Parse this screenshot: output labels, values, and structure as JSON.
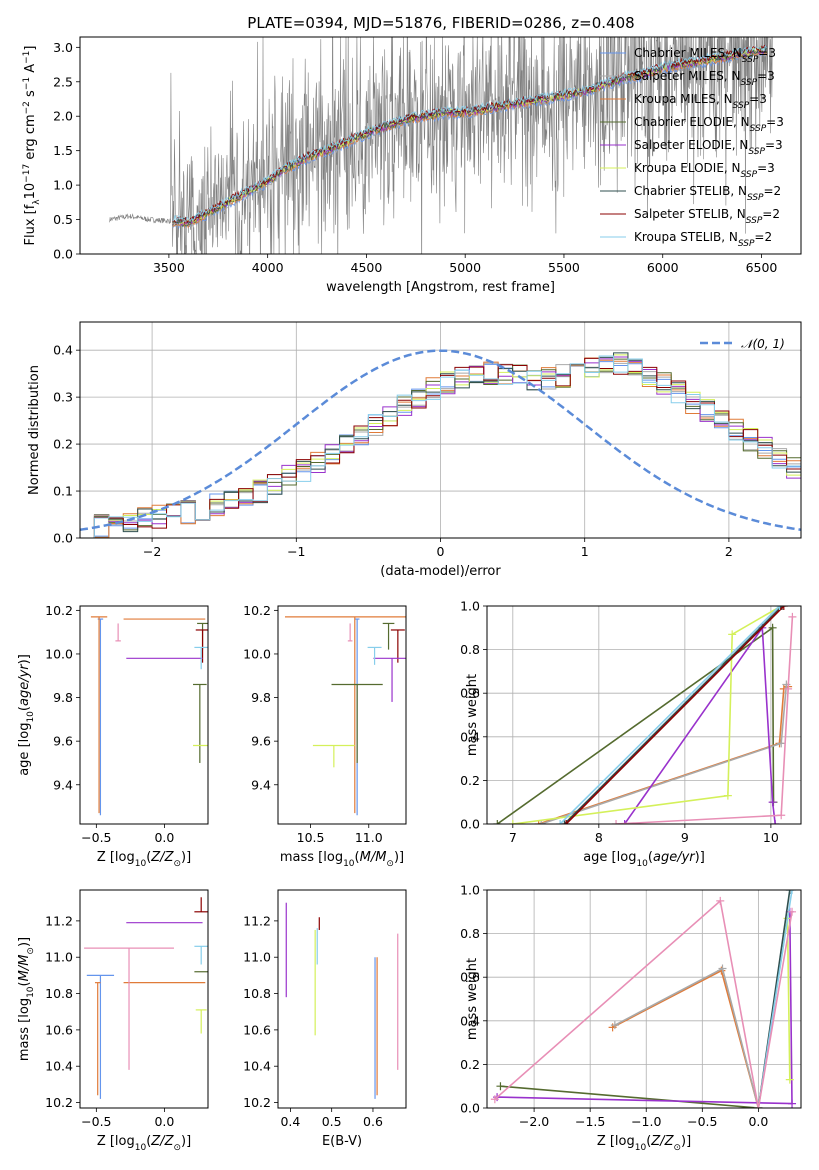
{
  "figure": {
    "title": "PLATE=0394, MJD=51876, FIBERID=0286, z=0.408"
  },
  "series_styles": [
    {
      "name": "Chabrier MILES",
      "nssp": "3",
      "color": "#6495ed"
    },
    {
      "name": "Salpeter MILES",
      "nssp": "3",
      "color": "#a9a9a9"
    },
    {
      "name": "Kroupa MILES",
      "nssp": "3",
      "color": "#e07b39"
    },
    {
      "name": "Chabrier ELODIE",
      "nssp": "3",
      "color": "#556b2f"
    },
    {
      "name": "Salpeter ELODIE",
      "nssp": "3",
      "color": "#9932cc"
    },
    {
      "name": "Kroupa ELODIE",
      "nssp": "3",
      "color": "#d4f05a"
    },
    {
      "name": "Chabrier STELIB",
      "nssp": "2",
      "color": "#2f4f4f"
    },
    {
      "name": "Salpeter STELIB",
      "nssp": "2",
      "color": "#8b0000"
    },
    {
      "name": "Kroupa STELIB",
      "nssp": "2",
      "color": "#87ceeb"
    }
  ],
  "chart_data": [
    {
      "id": "spectrum",
      "type": "line",
      "xlabel": "wavelength [Angstrom, rest frame]",
      "ylabel": "Flux [f_λ 10^-17 erg cm^-2 s^-1 A^-1]",
      "xlim": [
        3050,
        6700
      ],
      "ylim": [
        0,
        3.15
      ],
      "xticks": [
        3500,
        4000,
        4500,
        5000,
        5500,
        6000,
        6500
      ],
      "yticks": [
        0.0,
        0.5,
        1.0,
        1.5,
        2.0,
        2.5,
        3.0
      ],
      "legend": "upper right",
      "data_color": "#808080",
      "data_x_range": [
        3200,
        6560
      ],
      "model_x_range": [
        3520,
        6530
      ],
      "continuum": {
        "x": [
          3200,
          3300,
          3400,
          3500,
          3600,
          3700,
          3800,
          3900,
          4000,
          4100,
          4200,
          4300,
          4400,
          4500,
          4600,
          4700,
          4800,
          4900,
          5000,
          5100,
          5200,
          5300,
          5400,
          5500,
          5600,
          5700,
          5800,
          5900,
          6000,
          6100,
          6200,
          6300,
          6400,
          6500
        ],
        "y": [
          0.5,
          0.55,
          0.5,
          0.48,
          0.45,
          0.6,
          0.75,
          0.9,
          1.05,
          1.25,
          1.4,
          1.5,
          1.62,
          1.75,
          1.85,
          1.95,
          2.0,
          2.05,
          2.05,
          2.1,
          2.15,
          2.2,
          2.25,
          2.3,
          2.35,
          2.45,
          2.55,
          2.6,
          2.7,
          2.75,
          2.8,
          2.85,
          2.9,
          2.95
        ]
      }
    },
    {
      "id": "residuals",
      "type": "histogram",
      "xlabel": "(data-model)/error",
      "ylabel": "Normed distribution",
      "xlim": [
        -2.5,
        2.5
      ],
      "ylim": [
        0,
        0.46
      ],
      "xticks": [
        -2,
        -1,
        0,
        1,
        2
      ],
      "yticks": [
        0.0,
        0.1,
        0.2,
        0.3,
        0.4
      ],
      "grid": true,
      "legend": "upper right",
      "gaussian_label": "𝒩(0, 1)",
      "gaussian_color": "#5b8bd8",
      "bin_width": 0.1,
      "bin_start": -2.5,
      "envelope": [
        0.02,
        0.025,
        0.03,
        0.035,
        0.04,
        0.045,
        0.05,
        0.055,
        0.06,
        0.07,
        0.08,
        0.09,
        0.1,
        0.115,
        0.13,
        0.145,
        0.16,
        0.18,
        0.2,
        0.22,
        0.24,
        0.26,
        0.28,
        0.3,
        0.32,
        0.33,
        0.34,
        0.345,
        0.35,
        0.35,
        0.345,
        0.34,
        0.34,
        0.345,
        0.35,
        0.36,
        0.37,
        0.37,
        0.36,
        0.345,
        0.33,
        0.31,
        0.29,
        0.27,
        0.25,
        0.23,
        0.21,
        0.19,
        0.17,
        0.15
      ]
    },
    {
      "id": "age-vs-Z",
      "type": "errorbar",
      "xlabel": "Z [log10(Z/Z⊙)]",
      "ylabel": "age [log10(age/yr)]",
      "xlim": [
        -0.62,
        0.32
      ],
      "ylim": [
        9.22,
        10.22
      ],
      "xticks": [
        -0.5,
        0.0
      ],
      "xtick_labels": [
        "−0.5",
        "0.0"
      ],
      "yticks": [
        9.4,
        9.6,
        9.8,
        10.0,
        10.2
      ],
      "points": [
        {
          "x": -0.47,
          "y": 10.16,
          "xerr": 0.02,
          "yerr": [
            0.9,
            0.0
          ],
          "color": "#6495ed"
        },
        {
          "x": -0.48,
          "y": 10.17,
          "xerr": 0.06,
          "yerr": [
            0.9,
            0.0
          ],
          "color": "#e07b39"
        },
        {
          "x": 0.0,
          "y": 10.16,
          "xerr": 0.3,
          "yerr": [
            0.0,
            0.0
          ],
          "color": "#e07b39"
        },
        {
          "x": 0.28,
          "y": 10.14,
          "xerr": 0.04,
          "yerr": [
            0.12,
            0.0
          ],
          "color": "#556b2f"
        },
        {
          "x": 0.26,
          "y": 9.86,
          "xerr": 0.05,
          "yerr": [
            0.36,
            0.0
          ],
          "color": "#556b2f"
        },
        {
          "x": 0.28,
          "y": 10.11,
          "xerr": 0.05,
          "yerr": [
            0.15,
            0.0
          ],
          "color": "#8b0000"
        },
        {
          "x": 0.0,
          "y": 9.98,
          "xerr": 0.28,
          "yerr": [
            0.0,
            0.0
          ],
          "color": "#9932cc"
        },
        {
          "x": 0.27,
          "y": 9.58,
          "xerr": 0.06,
          "yerr": [
            0.0,
            0.0
          ],
          "color": "#d4f05a"
        },
        {
          "x": 0.27,
          "y": 10.03,
          "xerr": 0.05,
          "yerr": [
            0.1,
            0.0
          ],
          "color": "#87ceeb"
        },
        {
          "x": -0.34,
          "y": 10.06,
          "xerr": 0.02,
          "yerr": [
            0.0,
            0.08
          ],
          "color": "#e88fb6"
        }
      ]
    },
    {
      "id": "age-vs-mass",
      "type": "errorbar",
      "xlabel": "mass [log10(M/M⊙)]",
      "ylabel": "",
      "xlim": [
        10.22,
        11.32
      ],
      "ylim": [
        9.22,
        10.22
      ],
      "xticks": [
        10.5,
        11.0
      ],
      "yticks": [
        9.4,
        9.6,
        9.8,
        10.0,
        10.2
      ],
      "points": [
        {
          "x": 10.9,
          "y": 10.16,
          "xerr": 0.02,
          "yerr": [
            0.9,
            0.0
          ],
          "color": "#6495ed"
        },
        {
          "x": 10.88,
          "y": 10.17,
          "xerr": 0.6,
          "yerr": [
            0.9,
            0.0
          ],
          "color": "#e07b39"
        },
        {
          "x": 11.17,
          "y": 10.14,
          "xerr": 0.05,
          "yerr": [
            0.12,
            0.0
          ],
          "color": "#556b2f"
        },
        {
          "x": 10.9,
          "y": 9.86,
          "xerr": 0.22,
          "yerr": [
            0.36,
            0.0
          ],
          "color": "#556b2f"
        },
        {
          "x": 11.25,
          "y": 10.11,
          "xerr": 0.06,
          "yerr": [
            0.15,
            0.0
          ],
          "color": "#8b0000"
        },
        {
          "x": 11.2,
          "y": 9.98,
          "xerr": 0.16,
          "yerr": [
            0.2,
            0.0
          ],
          "color": "#9932cc"
        },
        {
          "x": 10.7,
          "y": 9.58,
          "xerr": 0.18,
          "yerr": [
            0.1,
            0.0
          ],
          "color": "#d4f05a"
        },
        {
          "x": 11.05,
          "y": 10.03,
          "xerr": 0.06,
          "yerr": [
            0.08,
            0.0
          ],
          "color": "#87ceeb"
        },
        {
          "x": 10.84,
          "y": 10.06,
          "xerr": 0.02,
          "yerr": [
            0.0,
            0.08
          ],
          "color": "#e88fb6"
        }
      ]
    },
    {
      "id": "cumulative-weight-vs-age",
      "type": "line",
      "xlabel": "age [log10(age/yr)]",
      "ylabel": "mass weight",
      "xlim": [
        6.7,
        10.35
      ],
      "ylim": [
        0,
        1.0
      ],
      "xticks": [
        7,
        8,
        9,
        10
      ],
      "yticks": [
        0.0,
        0.2,
        0.4,
        0.6,
        0.8,
        1.0
      ],
      "grid": true,
      "series": [
        {
          "color": "#556b2f",
          "x": [
            6.82,
            10.02,
            10.03
          ],
          "y": [
            0.0,
            0.9,
            0.1
          ]
        },
        {
          "color": "#e07b39",
          "x": [
            7.3,
            10.1,
            10.15,
            10.2
          ],
          "y": [
            0.0,
            0.37,
            0.62,
            0.63
          ]
        },
        {
          "color": "#a9a9a9",
          "x": [
            7.33,
            10.12,
            10.18
          ],
          "y": [
            0.0,
            0.37,
            0.64
          ]
        },
        {
          "color": "#9932cc",
          "x": [
            8.3,
            9.9,
            10.02,
            10.05
          ],
          "y": [
            0.0,
            0.9,
            0.1,
            0.0
          ]
        },
        {
          "color": "#d4f05a",
          "x": [
            7.0,
            9.5,
            9.55,
            10.12
          ],
          "y": [
            0.0,
            0.13,
            0.87,
            1.0
          ]
        },
        {
          "color": "#2f4f4f",
          "x": [
            7.6,
            10.13
          ],
          "y": [
            0.0,
            1.0
          ]
        },
        {
          "color": "#8b0000",
          "x": [
            7.62,
            10.15
          ],
          "y": [
            0.0,
            1.0
          ]
        },
        {
          "color": "#87ceeb",
          "x": [
            7.55,
            10.1
          ],
          "y": [
            0.0,
            1.0
          ]
        },
        {
          "color": "#e88fb6",
          "x": [
            8.2,
            10.12,
            10.2,
            10.25
          ],
          "y": [
            0.0,
            0.04,
            0.62,
            0.95
          ]
        }
      ]
    },
    {
      "id": "mass-vs-Z",
      "type": "errorbar",
      "xlabel": "Z [log10(Z/Z⊙)]",
      "ylabel": "mass [log10(M/M⊙)]",
      "xlim": [
        -0.62,
        0.32
      ],
      "ylim": [
        10.17,
        11.37
      ],
      "xticks": [
        -0.5,
        0.0
      ],
      "xtick_labels": [
        "−0.5",
        "0.0"
      ],
      "yticks": [
        10.2,
        10.4,
        10.6,
        10.8,
        11.0,
        11.2
      ],
      "points": [
        {
          "x": -0.47,
          "y": 10.9,
          "xerr": 0.1,
          "yerr": [
            0.68,
            0.0
          ],
          "color": "#6495ed"
        },
        {
          "x": -0.49,
          "y": 10.86,
          "xerr": 0.02,
          "yerr": [
            0.62,
            0.0
          ],
          "color": "#e07b39"
        },
        {
          "x": 0.0,
          "y": 10.86,
          "xerr": 0.3,
          "yerr": [
            0.0,
            0.0
          ],
          "color": "#e07b39"
        },
        {
          "x": 0.27,
          "y": 10.92,
          "xerr": 0.05,
          "yerr": [
            0.0,
            0.0
          ],
          "color": "#556b2f"
        },
        {
          "x": 0.27,
          "y": 11.25,
          "xerr": 0.05,
          "yerr": [
            0.0,
            0.08
          ],
          "color": "#8b0000"
        },
        {
          "x": 0.0,
          "y": 11.19,
          "xerr": 0.28,
          "yerr": [
            0.0,
            0.0
          ],
          "color": "#9932cc"
        },
        {
          "x": 0.27,
          "y": 10.71,
          "xerr": 0.04,
          "yerr": [
            0.13,
            0.0
          ],
          "color": "#d4f05a"
        },
        {
          "x": 0.27,
          "y": 11.06,
          "xerr": 0.05,
          "yerr": [
            0.1,
            0.0
          ],
          "color": "#87ceeb"
        },
        {
          "x": -0.26,
          "y": 11.05,
          "xerr": 0.33,
          "yerr": [
            0.67,
            0.0
          ],
          "color": "#e88fb6"
        }
      ]
    },
    {
      "id": "mass-vs-EBV",
      "type": "errorbar",
      "xlabel": "E(B-V)",
      "ylabel": "",
      "xlim": [
        0.37,
        0.68
      ],
      "ylim": [
        10.17,
        11.37
      ],
      "xticks": [
        0.4,
        0.5,
        0.6
      ],
      "yticks": [
        10.2,
        10.4,
        10.6,
        10.8,
        11.0,
        11.2
      ],
      "points": [
        {
          "x": 0.39,
          "y": 11.05,
          "yerr": [
            0.27,
            0.25
          ],
          "color": "#9932cc"
        },
        {
          "x": 0.46,
          "y": 10.95,
          "yerr": [
            0.38,
            0.2
          ],
          "color": "#d4f05a"
        },
        {
          "x": 0.465,
          "y": 11.06,
          "yerr": [
            0.1,
            0.1
          ],
          "color": "#87ceeb"
        },
        {
          "x": 0.47,
          "y": 11.2,
          "yerr": [
            0.05,
            0.02
          ],
          "color": "#8b0000"
        },
        {
          "x": 0.605,
          "y": 10.6,
          "yerr": [
            0.38,
            0.4
          ],
          "color": "#6495ed"
        },
        {
          "x": 0.61,
          "y": 10.62,
          "yerr": [
            0.38,
            0.38
          ],
          "color": "#e07b39"
        },
        {
          "x": 0.66,
          "y": 10.76,
          "yerr": [
            0.38,
            0.37
          ],
          "color": "#e88fb6"
        }
      ]
    },
    {
      "id": "cumulative-weight-vs-Z",
      "type": "line",
      "xlabel": "Z [log10(Z/Z⊙)]",
      "ylabel": "mass weight",
      "xlim": [
        -2.42,
        0.38
      ],
      "ylim": [
        0,
        1.0
      ],
      "xticks": [
        -2.0,
        -1.5,
        -1.0,
        -0.5,
        0.0
      ],
      "xtick_labels": [
        "−2.0",
        "−1.5",
        "−1.0",
        "−0.5",
        "0.0"
      ],
      "yticks": [
        0.0,
        0.2,
        0.4,
        0.6,
        0.8,
        1.0
      ],
      "grid": true,
      "series": [
        {
          "color": "#556b2f",
          "x": [
            -2.3,
            0.0
          ],
          "y": [
            0.1,
            0.0
          ]
        },
        {
          "color": "#e07b39",
          "x": [
            -1.3,
            -0.33,
            0.0
          ],
          "y": [
            0.37,
            0.63,
            0.0
          ]
        },
        {
          "color": "#a9a9a9",
          "x": [
            -1.28,
            -0.32,
            0.0
          ],
          "y": [
            0.38,
            0.64,
            0.0
          ]
        },
        {
          "color": "#9932cc",
          "x": [
            -2.33,
            0.3,
            0.28
          ],
          "y": [
            0.05,
            0.02,
            0.9
          ]
        },
        {
          "color": "#d4f05a",
          "x": [
            0.0,
            0.26,
            0.28
          ],
          "y": [
            0.0,
            0.87,
            0.13
          ]
        },
        {
          "color": "#2f4f4f",
          "x": [
            0.0,
            0.28
          ],
          "y": [
            0.0,
            1.0
          ]
        },
        {
          "color": "#87ceeb",
          "x": [
            0.0,
            0.3
          ],
          "y": [
            0.0,
            1.0
          ]
        },
        {
          "color": "#e88fb6",
          "x": [
            -2.35,
            -0.34,
            0.0,
            0.3
          ],
          "y": [
            0.04,
            0.95,
            0.0,
            0.9
          ]
        }
      ]
    }
  ]
}
